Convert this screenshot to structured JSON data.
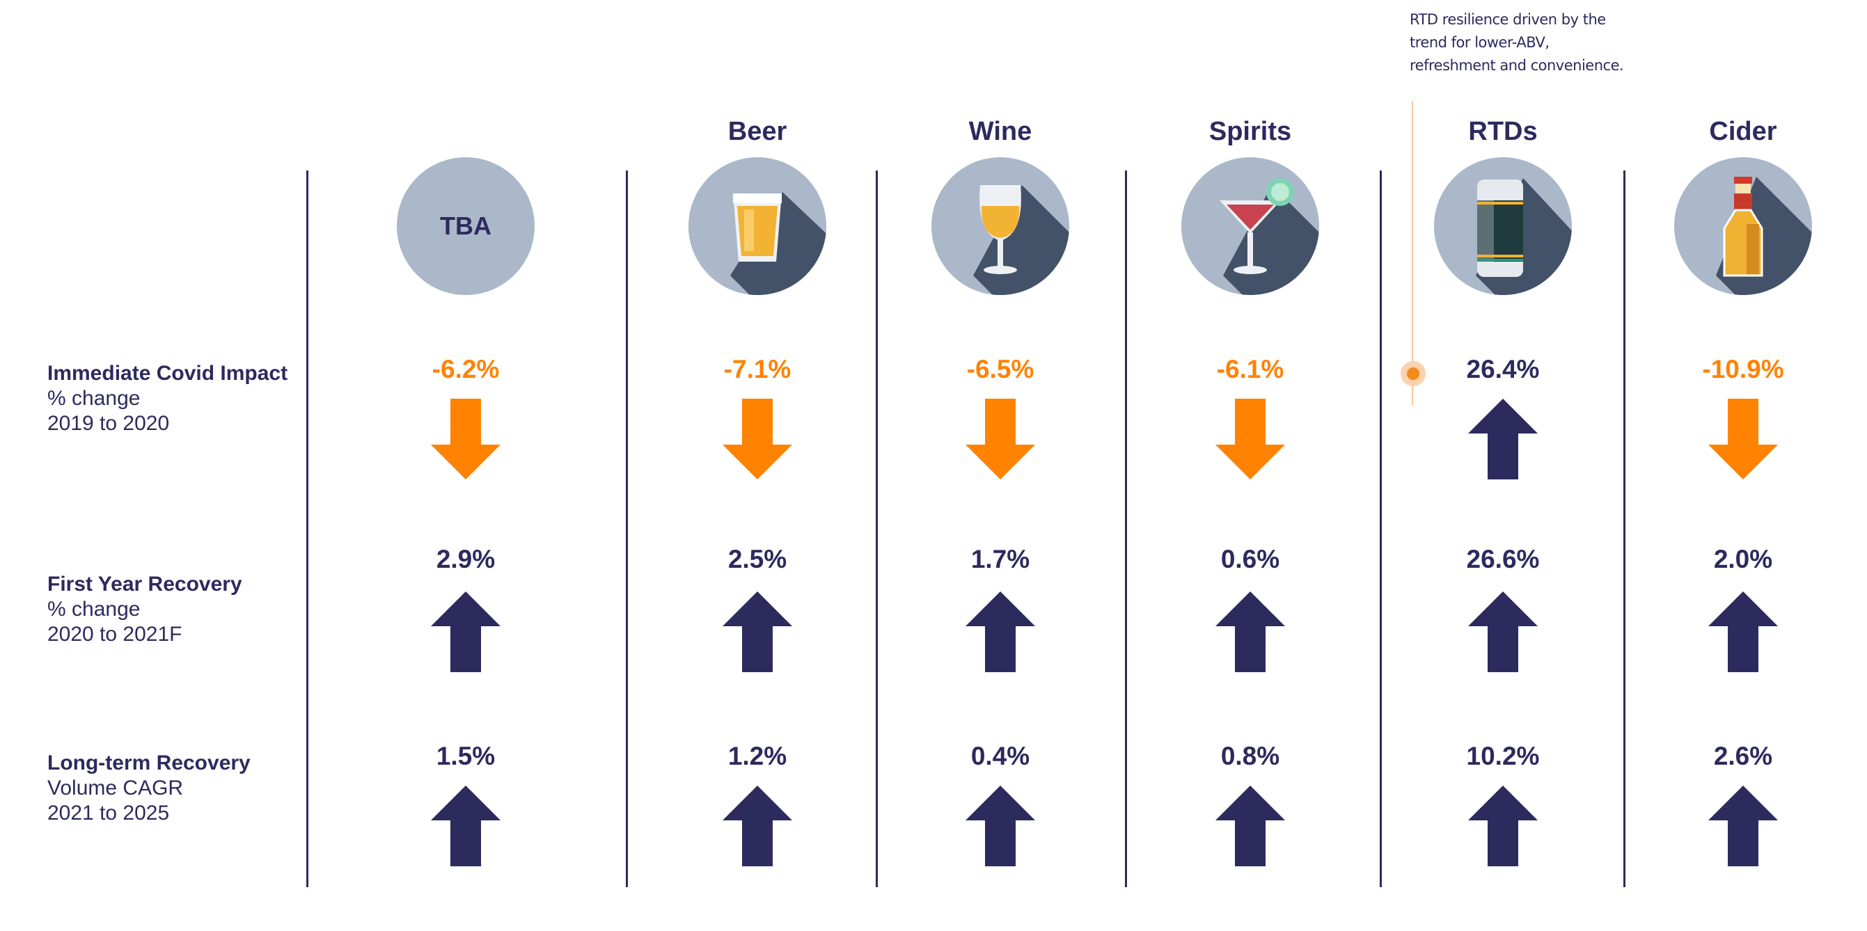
{
  "annotation": [
    "RTD resilience driven by the",
    "trend for lower-ABV,",
    "refreshment and convenience."
  ],
  "colors": {
    "navy": "#2d2a5e",
    "orange": "#ff8200",
    "circle": "#aab8c9",
    "shadow": "#435268"
  },
  "rows": [
    {
      "title": "Immediate Covid Impact",
      "line2": "% change",
      "line3": "2019 to 2020"
    },
    {
      "title": "First Year Recovery",
      "line2": "% change",
      "line3": "2020 to 2021F"
    },
    {
      "title": "Long-term Recovery",
      "line2": "Volume CAGR",
      "line3": "2021 to 2025"
    }
  ],
  "columns": [
    {
      "header": "",
      "icon": "tba",
      "icon_text": "TBA",
      "values": [
        {
          "text": "-6.2%",
          "dir": "down"
        },
        {
          "text": "2.9%",
          "dir": "up"
        },
        {
          "text": "1.5%",
          "dir": "up"
        }
      ]
    },
    {
      "header": "Beer",
      "icon": "beer-glass-icon",
      "values": [
        {
          "text": "-7.1%",
          "dir": "down"
        },
        {
          "text": "2.5%",
          "dir": "up"
        },
        {
          "text": "1.2%",
          "dir": "up"
        }
      ]
    },
    {
      "header": "Wine",
      "icon": "wine-glass-icon",
      "values": [
        {
          "text": "-6.5%",
          "dir": "down"
        },
        {
          "text": "1.7%",
          "dir": "up"
        },
        {
          "text": "0.4%",
          "dir": "up"
        }
      ]
    },
    {
      "header": "Spirits",
      "icon": "cocktail-glass-icon",
      "values": [
        {
          "text": "-6.1%",
          "dir": "down"
        },
        {
          "text": "0.6%",
          "dir": "up"
        },
        {
          "text": "0.8%",
          "dir": "up"
        }
      ]
    },
    {
      "header": "RTDs",
      "icon": "can-icon",
      "values": [
        {
          "text": "26.4%",
          "dir": "up"
        },
        {
          "text": "26.6%",
          "dir": "up"
        },
        {
          "text": "10.2%",
          "dir": "up"
        }
      ]
    },
    {
      "header": "Cider",
      "icon": "bottle-icon",
      "values": [
        {
          "text": "-10.9%",
          "dir": "down"
        },
        {
          "text": "2.0%",
          "dir": "up"
        },
        {
          "text": "2.6%",
          "dir": "up"
        }
      ]
    }
  ]
}
